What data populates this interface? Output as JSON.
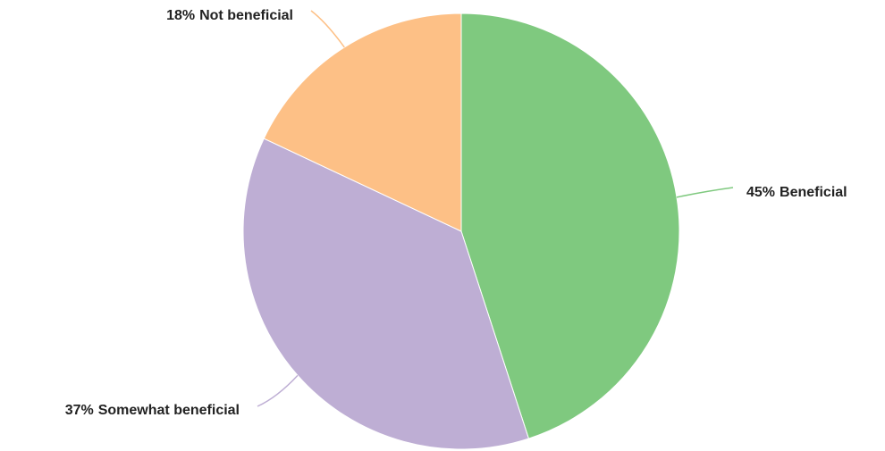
{
  "chart_data": {
    "type": "pie",
    "categories": [
      "Beneficial",
      "Somewhat beneficial",
      "Not beneficial"
    ],
    "values": [
      45,
      37,
      18
    ],
    "value_labels": [
      "45%",
      "37%",
      "18%"
    ],
    "colors": [
      "#7fc97f",
      "#beaed4",
      "#fdc086"
    ]
  }
}
